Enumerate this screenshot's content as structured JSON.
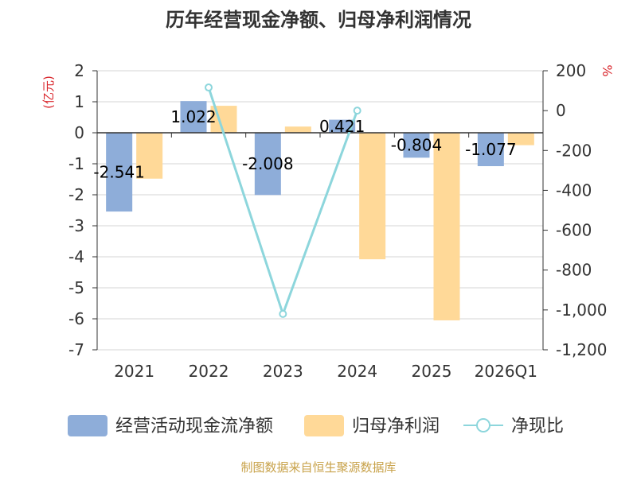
{
  "chart_data": {
    "type": "bar",
    "title": "历年经营现金净额、归母净利润情况",
    "categories": [
      "2021",
      "2022",
      "2023",
      "2024",
      "2025",
      "2026Q1"
    ],
    "left_axis": {
      "label": "(亿元)",
      "min": -7,
      "max": 2,
      "step": 1,
      "ticks": [
        "2",
        "1",
        "0",
        "-1",
        "-2",
        "-3",
        "-4",
        "-5",
        "-6",
        "-7"
      ]
    },
    "right_axis": {
      "label": "%",
      "min": -1200,
      "max": 200,
      "step": 200,
      "ticks": [
        "200",
        "0",
        "-200",
        "-400",
        "-600",
        "-800",
        "-1,000",
        "-1,200"
      ]
    },
    "series": [
      {
        "name": "经营活动现金流净额",
        "type": "bar",
        "axis": "left",
        "color": "#8eadd9",
        "values": [
          -2.541,
          1.022,
          -2.008,
          0.421,
          -0.804,
          -1.077
        ],
        "labels": [
          "-2.541",
          "1.022",
          "-2.008",
          "0.421",
          "-0.804",
          "-1.077"
        ]
      },
      {
        "name": "归母净利润",
        "type": "bar",
        "axis": "left",
        "color": "#ffd998",
        "values": [
          -1.48,
          0.87,
          0.2,
          -4.08,
          -6.05,
          -0.4
        ]
      },
      {
        "name": "净现比",
        "type": "line",
        "axis": "right",
        "color": "#8dd6dc",
        "values": [
          null,
          116,
          -1020,
          0,
          null,
          null
        ]
      }
    ],
    "legend_position": "bottom",
    "source": "制图数据来自恒生聚源数据库",
    "source_color": "#c8a24a"
  }
}
